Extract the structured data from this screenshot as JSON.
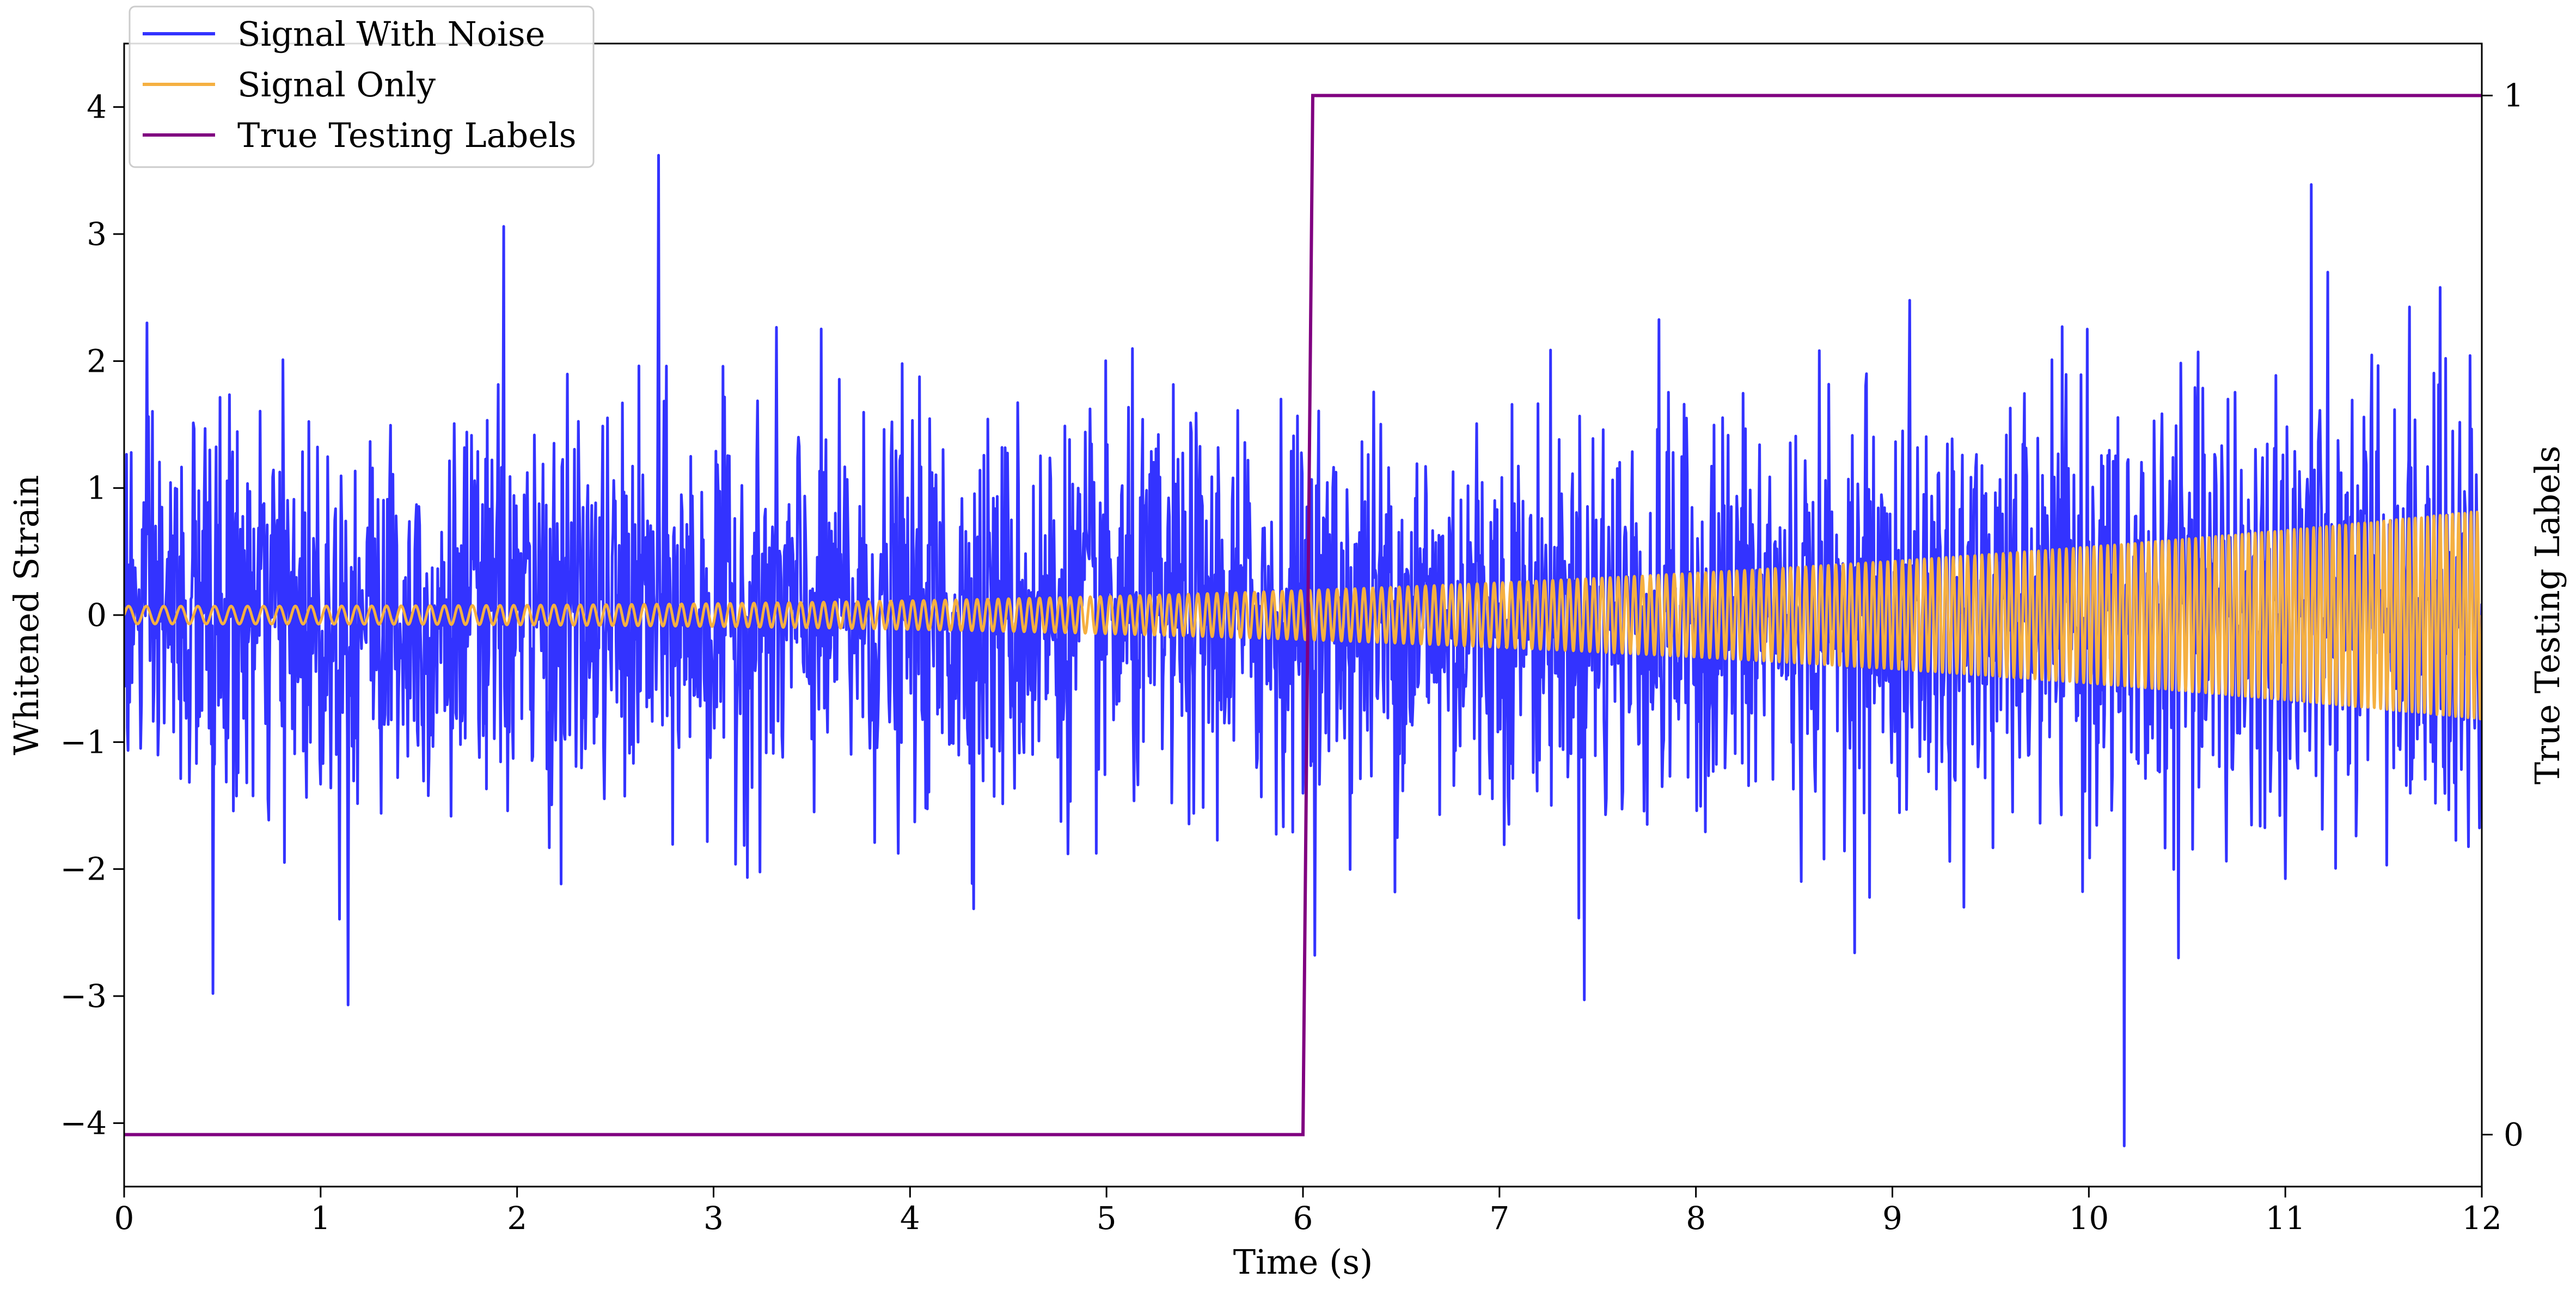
{
  "chart_data": {
    "type": "line",
    "xlabel": "Time (s)",
    "ylabel": "Whitened Strain",
    "y2label": "True Testing Labels",
    "xlim": [
      0,
      12
    ],
    "ylim": [
      -4.5,
      4.5
    ],
    "y2lim": [
      -0.05,
      1.05
    ],
    "xticks": [
      0,
      1,
      2,
      3,
      4,
      5,
      6,
      7,
      8,
      9,
      10,
      11,
      12
    ],
    "xtick_labels": [
      "0",
      "1",
      "2",
      "3",
      "4",
      "5",
      "6",
      "7",
      "8",
      "9",
      "10",
      "11",
      "12"
    ],
    "yticks": [
      -4,
      -3,
      -2,
      -1,
      0,
      1,
      2,
      3,
      4
    ],
    "ytick_labels": [
      "−4",
      "−3",
      "−2",
      "−1",
      "0",
      "1",
      "2",
      "3",
      "4"
    ],
    "y2ticks": [
      0,
      1
    ],
    "y2tick_labels": [
      "0",
      "1"
    ],
    "legend_position": "top-left",
    "series": [
      {
        "name": "Signal With Noise",
        "color": "#3333ff",
        "axis": "left",
        "kind": "noisy-waveform",
        "sample_rate_hz": 250,
        "noise_sigma": 0.75,
        "noted_extremes": [
          {
            "x": 2.72,
            "y": 3.62
          },
          {
            "x": 1.93,
            "y": 3.06
          },
          {
            "x": 11.13,
            "y": 3.39
          },
          {
            "x": 10.18,
            "y": -4.18
          },
          {
            "x": 1.14,
            "y": -3.07
          },
          {
            "x": 0.45,
            "y": -2.98
          },
          {
            "x": 7.43,
            "y": -3.03
          }
        ]
      },
      {
        "name": "Signal Only",
        "color": "#f5b041",
        "axis": "left",
        "kind": "chirp",
        "amplitude_start": 0.07,
        "amplitude_end": 0.82,
        "frequency_start_hz": 11,
        "frequency_end_hz": 32
      },
      {
        "name": "True Testing Labels",
        "color": "#800080",
        "axis": "right",
        "kind": "step",
        "points": [
          [
            0,
            0
          ],
          [
            6.0,
            0
          ],
          [
            6.05,
            1
          ],
          [
            12,
            1
          ]
        ]
      }
    ]
  }
}
